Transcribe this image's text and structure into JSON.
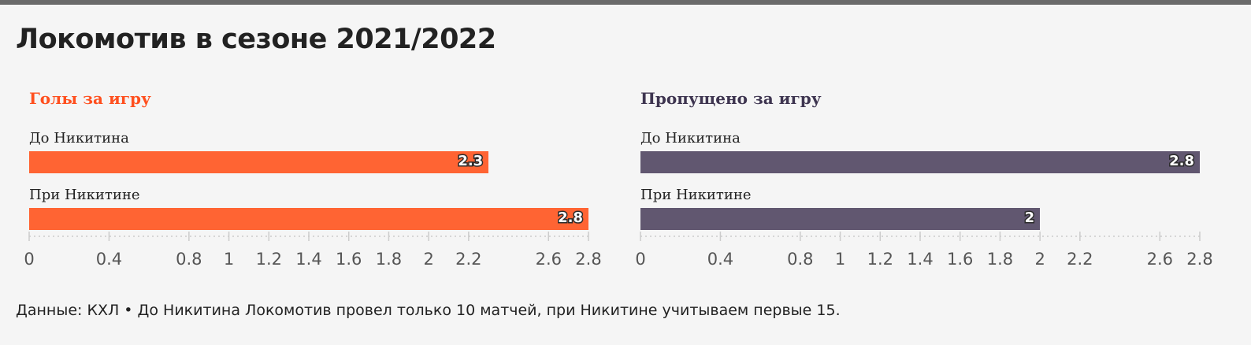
{
  "title": "Локомотив в сезоне 2021/2022",
  "footnote": "Данные: КХЛ • До Никитина Локомотив провел только 10 матчей, при Никитине учитываем первые 15.",
  "colors": {
    "goals_bar": "#ff6433",
    "goals_title": "#ff4f1e",
    "conceded_bar": "#615770",
    "conceded_title": "#3e3550",
    "axis": "#cccccc",
    "tick_text": "#555555",
    "top_rule": "#6b6b6b"
  },
  "chart_data": [
    {
      "type": "bar",
      "title": "Голы за игру",
      "categories": [
        "До Никитина",
        "При Никитине"
      ],
      "values": [
        2.3,
        2.8
      ],
      "xlim": [
        0,
        2.8
      ],
      "ticks": [
        "0",
        "0.4",
        "0.8",
        "1",
        "1.2",
        "1.4",
        "1.6",
        "1.8",
        "2",
        "2.2",
        "2.6",
        "2.8"
      ],
      "orientation": "horizontal"
    },
    {
      "type": "bar",
      "title": "Пропущено за игру",
      "categories": [
        "До Никитина",
        "При Никитине"
      ],
      "values": [
        2.8,
        2
      ],
      "xlim": [
        0,
        2.8
      ],
      "ticks": [
        "0",
        "0.4",
        "0.8",
        "1",
        "1.2",
        "1.4",
        "1.6",
        "1.8",
        "2",
        "2.2",
        "2.6",
        "2.8"
      ],
      "orientation": "horizontal"
    }
  ]
}
